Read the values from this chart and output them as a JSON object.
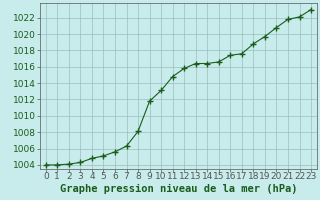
{
  "x": [
    0,
    1,
    2,
    3,
    4,
    5,
    6,
    7,
    8,
    9,
    10,
    11,
    12,
    13,
    14,
    15,
    16,
    17,
    18,
    19,
    20,
    21,
    22,
    23
  ],
  "y": [
    1004.0,
    1004.0,
    1004.1,
    1004.3,
    1004.8,
    1005.1,
    1005.6,
    1006.3,
    1008.1,
    1011.8,
    1013.1,
    1014.8,
    1015.8,
    1016.4,
    1016.4,
    1016.6,
    1017.4,
    1017.6,
    1018.8,
    1019.7,
    1020.8,
    1021.8,
    1022.1,
    1023.0
  ],
  "line_color": "#1a5c1a",
  "marker": "+",
  "marker_size": 4,
  "marker_linewidth": 1.0,
  "line_width": 0.8,
  "background_color": "#c8ecec",
  "grid_color": "#9bbfbf",
  "yticks": [
    1004,
    1006,
    1008,
    1010,
    1012,
    1014,
    1016,
    1018,
    1020,
    1022
  ],
  "ylim": [
    1003.5,
    1023.8
  ],
  "xlim": [
    -0.5,
    23.5
  ],
  "xlabel": "Graphe pression niveau de la mer (hPa)",
  "tick_label_color": "#1a5c1a",
  "axis_color": "#555555",
  "tick_fontsize": 6.5,
  "xlabel_fontsize": 7.5
}
